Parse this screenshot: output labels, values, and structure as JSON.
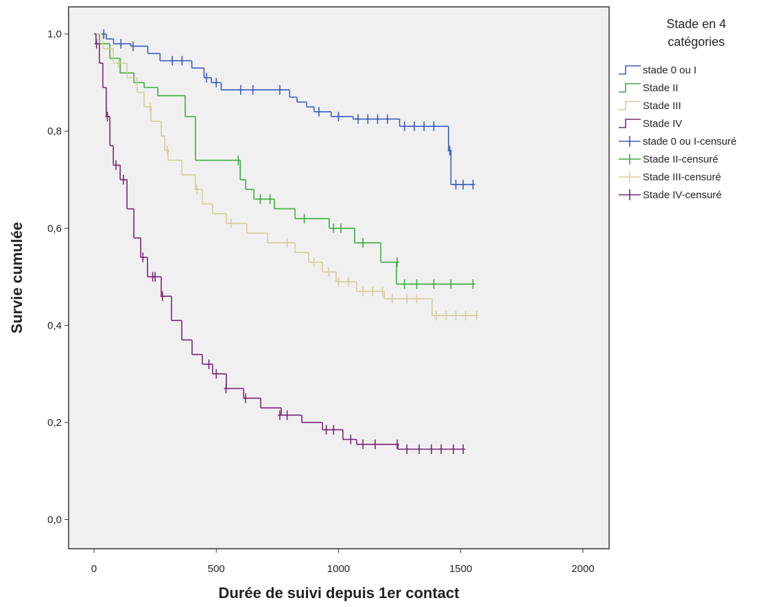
{
  "chart_data": {
    "type": "survival",
    "x_label": "Durée de suivi depuis 1er contact",
    "y_label": "Survie cumulée",
    "legend_title": "Stade en 4 catégories",
    "xlim": [
      -104,
      2107
    ],
    "ylim": [
      -0.06,
      1.056
    ],
    "xticks": [
      0,
      500,
      1000,
      1500,
      2000
    ],
    "yticks": [
      {
        "value": 0,
        "label": "0,0"
      },
      {
        "value": 0.2,
        "label": "0,2"
      },
      {
        "value": 0.4,
        "label": "0,4"
      },
      {
        "value": 0.6,
        "label": "0,6"
      },
      {
        "value": 0.8,
        "label": "0,8"
      },
      {
        "value": 1,
        "label": "1,0"
      }
    ],
    "series": [
      {
        "name": "stade 0 ou I",
        "color": "#3a5cbf",
        "kind": "step",
        "x": [
          0,
          50,
          80,
          150,
          220,
          270,
          400,
          450,
          480,
          520,
          800,
          830,
          870,
          900,
          970,
          1060,
          1250,
          1450,
          1460
        ],
        "values": [
          1,
          0.99,
          0.98,
          0.975,
          0.96,
          0.945,
          0.93,
          0.91,
          0.9,
          0.885,
          0.87,
          0.86,
          0.85,
          0.84,
          0.83,
          0.825,
          0.81,
          0.76,
          0.69
        ]
      },
      {
        "name": "Stade II",
        "color": "#3cac3c",
        "kind": "step",
        "x": [
          0,
          22,
          65,
          107,
          163,
          205,
          261,
          373,
          415,
          598,
          620,
          654,
          738,
          822,
          962,
          1066,
          1173,
          1237
        ],
        "values": [
          1,
          0.98,
          0.95,
          0.92,
          0.9,
          0.89,
          0.873,
          0.83,
          0.74,
          0.7,
          0.68,
          0.66,
          0.64,
          0.62,
          0.6,
          0.57,
          0.53,
          0.485
        ]
      },
      {
        "name": "Stade III",
        "color": "#d6cc9a",
        "kind": "step",
        "x": [
          0,
          36,
          79,
          135,
          177,
          205,
          233,
          275,
          289,
          303,
          359,
          415,
          443,
          485,
          541,
          625,
          710,
          822,
          878,
          934,
          990,
          1074,
          1187,
          1383
        ],
        "values": [
          1,
          0.97,
          0.94,
          0.91,
          0.88,
          0.85,
          0.82,
          0.79,
          0.76,
          0.74,
          0.71,
          0.68,
          0.65,
          0.63,
          0.61,
          0.59,
          0.57,
          0.55,
          0.53,
          0.51,
          0.49,
          0.47,
          0.455,
          0.42
        ]
      },
      {
        "name": "Stade IV",
        "color": "#7a2378",
        "kind": "step",
        "x": [
          0,
          8,
          22,
          36,
          50,
          65,
          79,
          107,
          135,
          163,
          191,
          219,
          275,
          317,
          359,
          401,
          443,
          485,
          541,
          612,
          682,
          766,
          850,
          934,
          1018,
          1074,
          1243
        ],
        "values": [
          1,
          0.98,
          0.94,
          0.89,
          0.83,
          0.77,
          0.73,
          0.7,
          0.64,
          0.58,
          0.54,
          0.5,
          0.46,
          0.41,
          0.37,
          0.34,
          0.32,
          0.3,
          0.27,
          0.25,
          0.23,
          0.215,
          0.2,
          0.185,
          0.165,
          0.155,
          0.145
        ]
      },
      {
        "name": "stade 0 ou I-censuré",
        "color": "#3a5cbf",
        "kind": "censored",
        "x": [
          40,
          110,
          160,
          320,
          360,
          460,
          500,
          600,
          650,
          760,
          920,
          1000,
          1080,
          1120,
          1160,
          1200,
          1270,
          1310,
          1350,
          1390,
          1455,
          1480,
          1510,
          1550
        ],
        "values": [
          1,
          0.98,
          0.975,
          0.945,
          0.945,
          0.91,
          0.9,
          0.885,
          0.885,
          0.885,
          0.84,
          0.83,
          0.825,
          0.825,
          0.825,
          0.825,
          0.81,
          0.81,
          0.81,
          0.81,
          0.76,
          0.69,
          0.69,
          0.69
        ]
      },
      {
        "name": "Stade II-censuré",
        "color": "#3cac3c",
        "kind": "censored",
        "x": [
          590,
          680,
          720,
          860,
          980,
          1010,
          1100,
          1240,
          1270,
          1320,
          1390,
          1460,
          1550
        ],
        "values": [
          0.74,
          0.66,
          0.66,
          0.62,
          0.6,
          0.6,
          0.57,
          0.53,
          0.485,
          0.485,
          0.485,
          0.485,
          0.485
        ]
      },
      {
        "name": "Stade III-censuré",
        "color": "#d6cc9a",
        "kind": "censored",
        "x": [
          100,
          230,
          300,
          420,
          560,
          790,
          900,
          960,
          1000,
          1040,
          1100,
          1140,
          1180,
          1220,
          1280,
          1320,
          1400,
          1440,
          1480,
          1520,
          1565
        ],
        "values": [
          0.94,
          0.85,
          0.76,
          0.68,
          0.61,
          0.57,
          0.53,
          0.51,
          0.49,
          0.49,
          0.47,
          0.47,
          0.47,
          0.455,
          0.455,
          0.455,
          0.42,
          0.42,
          0.42,
          0.42,
          0.42
        ]
      },
      {
        "name": "Stade IV-censuré",
        "color": "#7a2378",
        "kind": "censored",
        "x": [
          10,
          55,
          90,
          120,
          200,
          240,
          250,
          280,
          470,
          500,
          540,
          620,
          760,
          790,
          950,
          980,
          1050,
          1100,
          1150,
          1240,
          1280,
          1330,
          1380,
          1420,
          1470,
          1510
        ],
        "values": [
          0.98,
          0.83,
          0.73,
          0.7,
          0.54,
          0.5,
          0.5,
          0.46,
          0.32,
          0.3,
          0.27,
          0.25,
          0.215,
          0.215,
          0.185,
          0.185,
          0.165,
          0.155,
          0.155,
          0.155,
          0.145,
          0.145,
          0.145,
          0.145,
          0.145,
          0.145
        ]
      }
    ]
  }
}
